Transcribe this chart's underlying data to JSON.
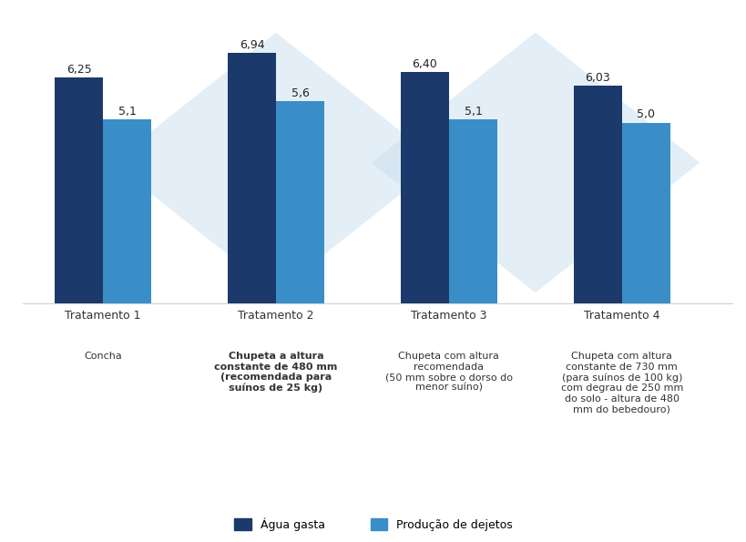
{
  "categories": [
    "Tratamento 1",
    "Tratamento 2",
    "Tratamento 3",
    "Tratamento 4"
  ],
  "subcategories": [
    "Concha",
    "Chupeta a altura\nconstante de 480 mm\n(recomendada para\nsuínos de 25 kg)",
    "Chupeta com altura\nrecomendada\n(50 mm sobre o dorso do\nmenor suíno)",
    "Chupeta com altura\nconstante de 730 mm\n(para suínos de 100 kg)\ncom degrau de 250 mm\ndo solo - altura de 480\nmm do bebedouro)"
  ],
  "agua_gasta": [
    6.25,
    6.94,
    6.4,
    6.03
  ],
  "producao_dejetos": [
    5.1,
    5.6,
    5.1,
    5.0
  ],
  "color_agua": "#1b3a6b",
  "color_dejetos": "#3a8ec8",
  "background_color": "#ffffff",
  "grid_color": "#d0d0d0",
  "ylim": [
    0,
    7.8
  ],
  "bar_width": 0.28,
  "label_agua": "Água gasta",
  "label_dejetos": "Produção de dejetos",
  "value_fontsize": 9,
  "tick_fontsize": 9,
  "legend_fontsize": 9,
  "sublabel_fontsize": 8,
  "watermark_color": "#cfe0ef",
  "watermark_alpha": 0.55,
  "bold_idx": 1
}
